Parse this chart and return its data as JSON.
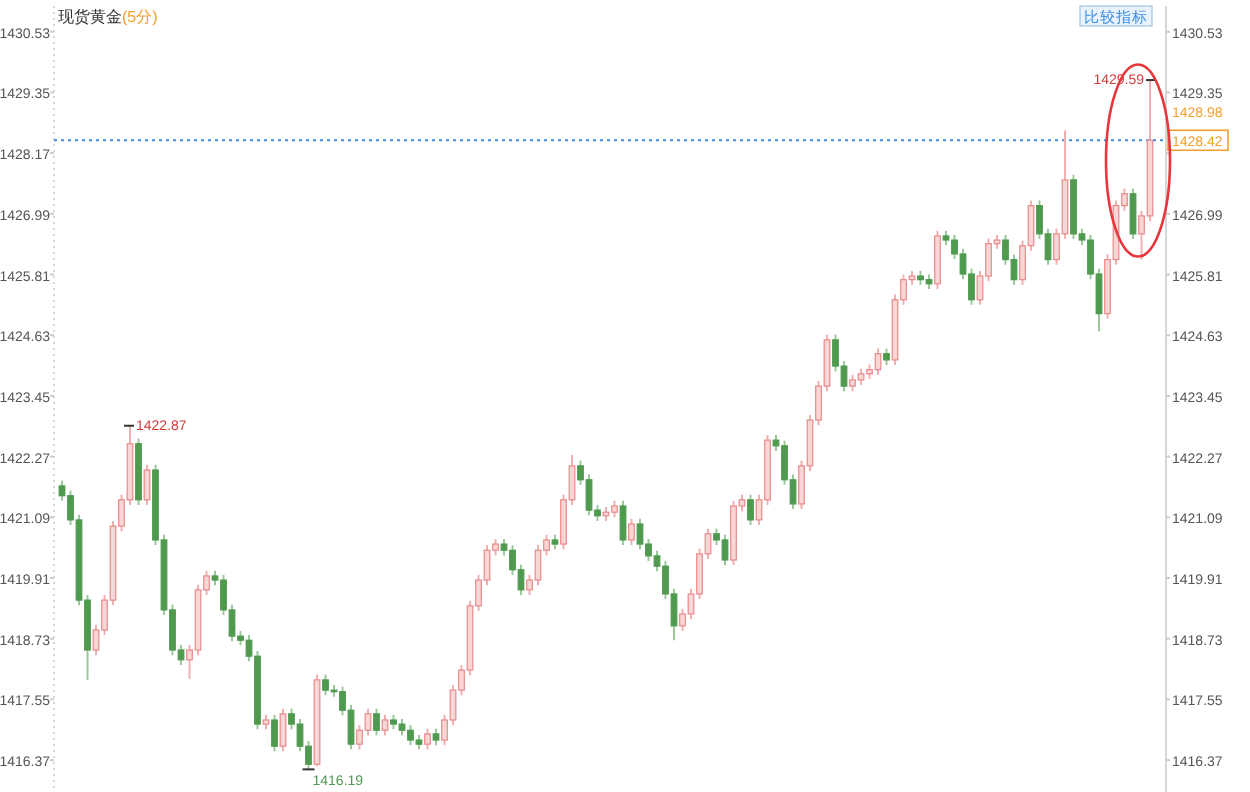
{
  "chart_data": {
    "type": "candlestick",
    "title": "现货黄金",
    "subtitle": "(5分)",
    "categories": [
      null,
      null,
      null,
      null,
      null,
      null,
      null,
      null,
      null,
      null,
      null,
      null,
      null,
      null,
      null,
      null,
      null,
      null,
      null,
      null,
      null,
      null,
      null,
      null,
      null,
      null,
      null,
      null,
      null,
      null,
      null,
      null,
      null,
      null,
      null,
      null,
      null,
      null,
      null,
      null,
      null,
      null,
      null,
      null,
      null,
      null,
      null,
      null,
      null,
      null,
      null,
      null,
      null,
      null,
      null,
      null,
      null,
      null,
      null,
      null,
      null,
      null,
      null,
      null,
      null,
      null,
      null,
      null,
      null,
      null,
      null,
      null,
      null,
      null,
      null,
      null,
      null,
      null,
      null,
      null,
      null,
      null,
      null,
      null,
      null,
      null,
      null,
      null,
      null,
      null,
      null,
      null,
      null,
      null,
      null,
      null,
      null,
      null,
      null,
      null,
      null,
      null,
      null,
      null,
      null,
      null,
      null,
      null,
      null,
      null,
      null,
      null,
      null,
      null,
      null,
      null,
      null,
      null,
      null,
      null,
      null,
      null,
      null,
      null,
      null,
      null,
      null,
      null,
      null
    ],
    "ohlc": [
      [
        1421.7,
        1421.8,
        1421.41,
        1421.51
      ],
      [
        1421.51,
        1421.61,
        1420.94,
        1421.04
      ],
      [
        1421.04,
        1421.14,
        1419.38,
        1419.48
      ],
      [
        1419.48,
        1419.58,
        1417.93,
        1418.51
      ],
      [
        1418.51,
        1419.0,
        1418.41,
        1418.9
      ],
      [
        1418.9,
        1419.58,
        1418.8,
        1419.48
      ],
      [
        1419.48,
        1421.02,
        1419.38,
        1420.92
      ],
      [
        1420.92,
        1421.53,
        1420.82,
        1421.43
      ],
      [
        1421.43,
        1422.87,
        1421.33,
        1422.52
      ],
      [
        1422.52,
        1422.62,
        1421.33,
        1421.43
      ],
      [
        1421.43,
        1422.11,
        1421.33,
        1422.01
      ],
      [
        1422.01,
        1422.11,
        1420.55,
        1420.65
      ],
      [
        1420.65,
        1420.75,
        1419.19,
        1419.29
      ],
      [
        1419.29,
        1419.39,
        1418.41,
        1418.51
      ],
      [
        1418.51,
        1418.61,
        1418.22,
        1418.32
      ],
      [
        1418.32,
        1418.61,
        1417.95,
        1418.51
      ],
      [
        1418.51,
        1419.78,
        1418.41,
        1419.68
      ],
      [
        1419.68,
        1420.05,
        1419.58,
        1419.95
      ],
      [
        1419.95,
        1420.05,
        1419.77,
        1419.87
      ],
      [
        1419.87,
        1419.97,
        1419.19,
        1419.29
      ],
      [
        1419.29,
        1419.39,
        1418.68,
        1418.78
      ],
      [
        1418.78,
        1418.88,
        1418.6,
        1418.7
      ],
      [
        1418.7,
        1418.8,
        1418.29,
        1418.39
      ],
      [
        1418.39,
        1418.49,
        1416.97,
        1417.07
      ],
      [
        1417.07,
        1417.25,
        1416.97,
        1417.15
      ],
      [
        1417.15,
        1417.25,
        1416.54,
        1416.64
      ],
      [
        1416.64,
        1417.37,
        1416.54,
        1417.27
      ],
      [
        1417.27,
        1417.37,
        1416.97,
        1417.07
      ],
      [
        1417.07,
        1417.17,
        1416.54,
        1416.64
      ],
      [
        1416.64,
        1416.74,
        1416.19,
        1416.29
      ],
      [
        1416.29,
        1418.03,
        1416.25,
        1417.93
      ],
      [
        1417.93,
        1418.03,
        1417.63,
        1417.73
      ],
      [
        1417.73,
        1417.83,
        1417.6,
        1417.7
      ],
      [
        1417.7,
        1417.8,
        1417.24,
        1417.34
      ],
      [
        1417.34,
        1417.44,
        1416.58,
        1416.68
      ],
      [
        1416.68,
        1417.05,
        1416.58,
        1416.95
      ],
      [
        1416.95,
        1417.37,
        1416.85,
        1417.27
      ],
      [
        1417.27,
        1417.37,
        1416.85,
        1416.95
      ],
      [
        1416.95,
        1417.25,
        1416.85,
        1417.15
      ],
      [
        1417.15,
        1417.25,
        1416.97,
        1417.07
      ],
      [
        1417.07,
        1417.17,
        1416.85,
        1416.95
      ],
      [
        1416.95,
        1417.05,
        1416.66,
        1416.76
      ],
      [
        1416.76,
        1416.86,
        1416.58,
        1416.68
      ],
      [
        1416.68,
        1416.98,
        1416.58,
        1416.88
      ],
      [
        1416.88,
        1416.98,
        1416.66,
        1416.76
      ],
      [
        1416.76,
        1417.25,
        1416.66,
        1417.15
      ],
      [
        1417.15,
        1417.83,
        1417.05,
        1417.73
      ],
      [
        1417.73,
        1418.22,
        1417.63,
        1418.12
      ],
      [
        1418.12,
        1419.47,
        1418.02,
        1419.37
      ],
      [
        1419.37,
        1419.97,
        1419.27,
        1419.87
      ],
      [
        1419.87,
        1420.55,
        1419.77,
        1420.45
      ],
      [
        1420.45,
        1420.67,
        1420.35,
        1420.57
      ],
      [
        1420.57,
        1420.67,
        1420.35,
        1420.45
      ],
      [
        1420.45,
        1420.55,
        1419.97,
        1420.07
      ],
      [
        1420.07,
        1420.17,
        1419.58,
        1419.68
      ],
      [
        1419.68,
        1419.97,
        1419.58,
        1419.87
      ],
      [
        1419.87,
        1420.55,
        1419.77,
        1420.45
      ],
      [
        1420.45,
        1420.75,
        1420.35,
        1420.65
      ],
      [
        1420.65,
        1420.75,
        1420.47,
        1420.57
      ],
      [
        1420.57,
        1421.53,
        1420.47,
        1421.43
      ],
      [
        1421.43,
        1422.3,
        1421.33,
        1422.09
      ],
      [
        1422.09,
        1422.19,
        1421.72,
        1421.82
      ],
      [
        1421.82,
        1421.92,
        1421.13,
        1421.23
      ],
      [
        1421.23,
        1421.33,
        1421.02,
        1421.12
      ],
      [
        1421.12,
        1421.29,
        1421.02,
        1421.19
      ],
      [
        1421.19,
        1421.41,
        1421.09,
        1421.31
      ],
      [
        1421.31,
        1421.41,
        1420.55,
        1420.65
      ],
      [
        1420.65,
        1421.06,
        1420.55,
        1420.96
      ],
      [
        1420.96,
        1421.06,
        1420.47,
        1420.57
      ],
      [
        1420.57,
        1420.67,
        1420.24,
        1420.34
      ],
      [
        1420.34,
        1420.44,
        1420.04,
        1420.14
      ],
      [
        1420.14,
        1420.24,
        1419.5,
        1419.6
      ],
      [
        1419.6,
        1419.7,
        1418.7,
        1418.98
      ],
      [
        1418.98,
        1419.31,
        1418.88,
        1419.21
      ],
      [
        1419.21,
        1419.7,
        1419.11,
        1419.6
      ],
      [
        1419.6,
        1420.48,
        1419.5,
        1420.38
      ],
      [
        1420.38,
        1420.87,
        1420.28,
        1420.77
      ],
      [
        1420.77,
        1420.87,
        1420.55,
        1420.65
      ],
      [
        1420.65,
        1420.75,
        1420.16,
        1420.26
      ],
      [
        1420.26,
        1421.41,
        1420.16,
        1421.31
      ],
      [
        1421.31,
        1421.53,
        1421.21,
        1421.43
      ],
      [
        1421.43,
        1421.53,
        1420.94,
        1421.04
      ],
      [
        1421.04,
        1421.53,
        1420.94,
        1421.43
      ],
      [
        1421.43,
        1422.69,
        1421.33,
        1422.59
      ],
      [
        1422.59,
        1422.69,
        1422.38,
        1422.48
      ],
      [
        1422.48,
        1422.58,
        1421.72,
        1421.82
      ],
      [
        1421.82,
        1421.92,
        1421.25,
        1421.35
      ],
      [
        1421.35,
        1422.19,
        1421.25,
        1422.09
      ],
      [
        1422.09,
        1423.08,
        1421.99,
        1422.98
      ],
      [
        1422.98,
        1423.74,
        1422.88,
        1423.64
      ],
      [
        1423.64,
        1424.64,
        1423.54,
        1424.54
      ],
      [
        1424.54,
        1424.64,
        1423.93,
        1424.03
      ],
      [
        1424.03,
        1424.13,
        1423.54,
        1423.64
      ],
      [
        1423.64,
        1423.86,
        1423.54,
        1423.76
      ],
      [
        1423.76,
        1423.98,
        1423.66,
        1423.88
      ],
      [
        1423.88,
        1424.06,
        1423.78,
        1423.96
      ],
      [
        1423.96,
        1424.37,
        1423.86,
        1424.27
      ],
      [
        1424.27,
        1424.37,
        1424.05,
        1424.15
      ],
      [
        1424.15,
        1425.42,
        1424.05,
        1425.32
      ],
      [
        1425.32,
        1425.81,
        1425.22,
        1425.71
      ],
      [
        1425.71,
        1425.88,
        1425.61,
        1425.78
      ],
      [
        1425.78,
        1425.88,
        1425.61,
        1425.71
      ],
      [
        1425.71,
        1425.81,
        1425.53,
        1425.63
      ],
      [
        1425.63,
        1426.66,
        1425.53,
        1426.56
      ],
      [
        1426.56,
        1426.66,
        1426.38,
        1426.48
      ],
      [
        1426.48,
        1426.58,
        1426.11,
        1426.21
      ],
      [
        1426.21,
        1426.31,
        1425.72,
        1425.82
      ],
      [
        1425.82,
        1425.92,
        1425.22,
        1425.32
      ],
      [
        1425.32,
        1425.88,
        1425.22,
        1425.78
      ],
      [
        1425.78,
        1426.51,
        1425.68,
        1426.41
      ],
      [
        1426.41,
        1426.58,
        1426.31,
        1426.48
      ],
      [
        1426.48,
        1426.58,
        1426.0,
        1426.1
      ],
      [
        1426.1,
        1426.2,
        1425.61,
        1425.71
      ],
      [
        1425.71,
        1426.47,
        1425.61,
        1426.37
      ],
      [
        1426.37,
        1427.25,
        1426.27,
        1427.15
      ],
      [
        1427.15,
        1427.25,
        1426.5,
        1426.6
      ],
      [
        1426.6,
        1426.7,
        1426.0,
        1426.1
      ],
      [
        1426.1,
        1426.7,
        1426.0,
        1426.6
      ],
      [
        1426.6,
        1428.61,
        1426.5,
        1427.65
      ],
      [
        1427.65,
        1427.75,
        1426.5,
        1426.6
      ],
      [
        1426.6,
        1426.7,
        1426.38,
        1426.48
      ],
      [
        1426.48,
        1426.58,
        1425.72,
        1425.82
      ],
      [
        1425.82,
        1425.92,
        1424.7,
        1425.05
      ],
      [
        1425.05,
        1426.2,
        1424.95,
        1426.1
      ],
      [
        1426.1,
        1427.25,
        1426.0,
        1427.15
      ],
      [
        1427.15,
        1427.48,
        1427.05,
        1427.38
      ],
      [
        1427.38,
        1427.48,
        1426.5,
        1426.6
      ],
      [
        1426.6,
        1427.05,
        1426.1,
        1426.95
      ],
      [
        1426.95,
        1429.59,
        1426.85,
        1428.42
      ]
    ],
    "ylim": [
      1415.75,
      1431.03
    ],
    "yticks": [
      1416.37,
      1417.55,
      1418.73,
      1419.91,
      1421.09,
      1422.27,
      1423.45,
      1424.63,
      1425.81,
      1426.99,
      1428.17,
      1429.35,
      1430.53
    ],
    "y2lim": [
      1415.75,
      1431.03
    ],
    "y2ticks": [
      1416.37,
      1417.55,
      1418.73,
      1419.91,
      1421.09,
      1422.27,
      1423.45,
      1424.63,
      1425.81,
      1426.99,
      {
        "value": 1428.17,
        "label": null
      },
      1429.35,
      1430.53
    ],
    "ref_lines": [
      {
        "axis": "y2",
        "value": 1428.42,
        "label": "1428.42",
        "color": "#3a8ee6",
        "line_style": "dotted"
      }
    ],
    "annotations": [
      "1422.87",
      "1416.19",
      "1429.59",
      "1428.98",
      "比较指标"
    ],
    "grid": false
  }
}
